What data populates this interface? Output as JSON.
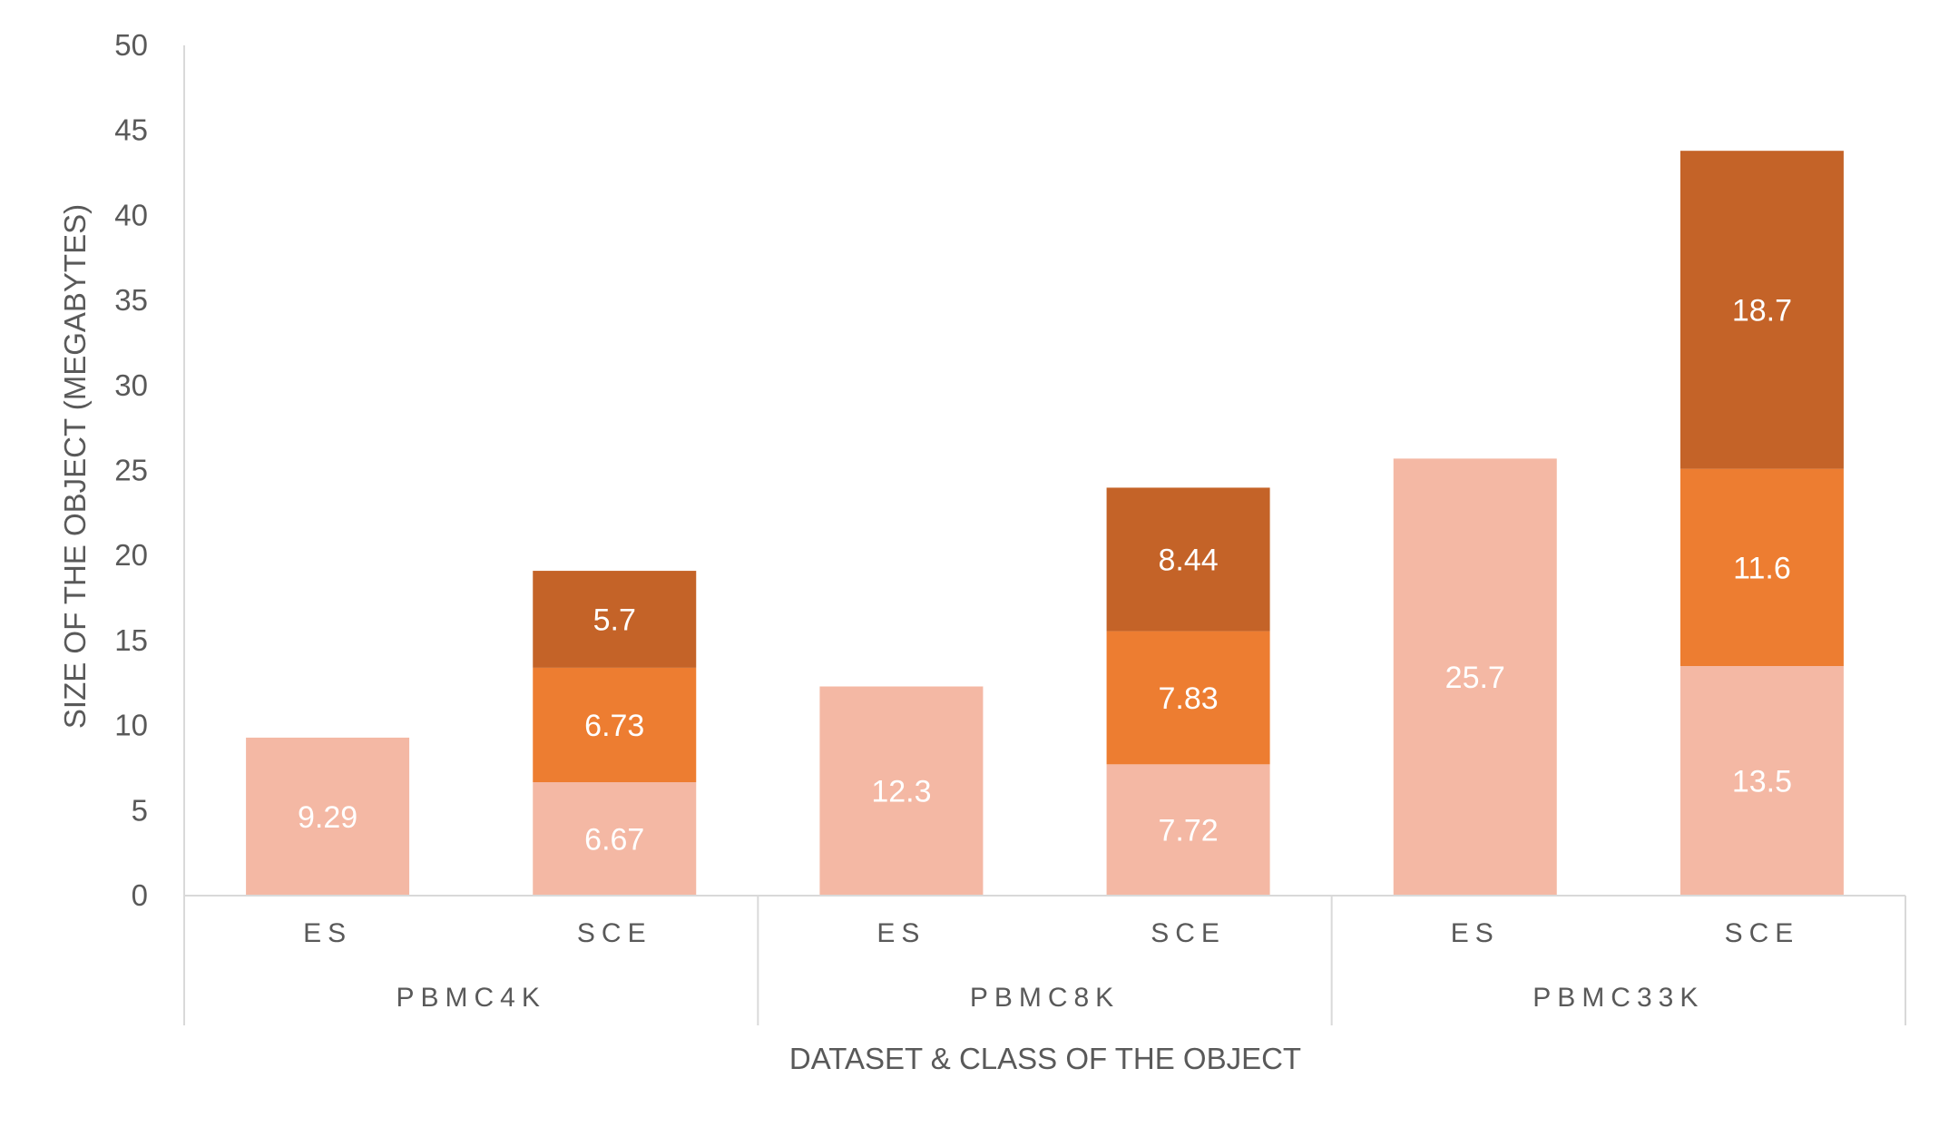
{
  "chart_data": {
    "type": "bar",
    "stacked": true,
    "title": "",
    "xlabel": "DATASET & CLASS OF THE OBJECT",
    "ylabel": "SIZE OF THE OBJECT (MEGABYTES)",
    "ylim": [
      0,
      50
    ],
    "yticks": [
      0,
      5,
      10,
      15,
      20,
      25,
      30,
      35,
      40,
      45,
      50
    ],
    "grid": false,
    "legend": "none",
    "groups": [
      {
        "label": "PBMC4K",
        "categories": [
          "ES",
          "SCE"
        ]
      },
      {
        "label": "PBMC8K",
        "categories": [
          "ES",
          "SCE"
        ]
      },
      {
        "label": "PBMC33K",
        "categories": [
          "ES",
          "SCE"
        ]
      }
    ],
    "series": [
      {
        "color": "#f4b8a4",
        "values": [
          9.29,
          6.67,
          12.3,
          7.72,
          25.7,
          13.5
        ]
      },
      {
        "color": "#ed7d31",
        "values": [
          null,
          6.73,
          null,
          7.83,
          null,
          11.6
        ]
      },
      {
        "color": "#c46328",
        "values": [
          null,
          5.7,
          null,
          8.44,
          null,
          18.7
        ]
      }
    ],
    "colors": {
      "axis_text": "#595959",
      "axis_line": "#d9d9d9",
      "data_label": "#ffffff"
    }
  }
}
